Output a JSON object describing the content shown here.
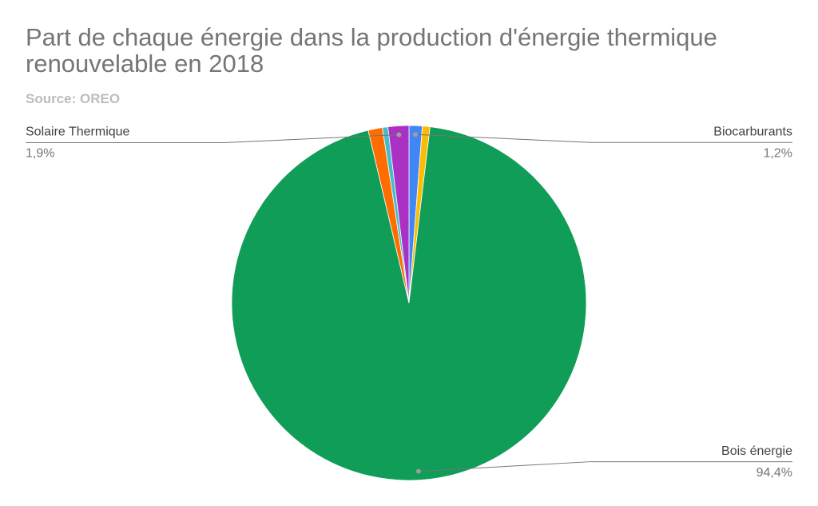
{
  "chart_data": {
    "type": "pie",
    "title": "Part de chaque énergie dans la production d'énergie thermique renouvelable en 2018",
    "subtitle": "Source: OREO",
    "categories": [
      "Biocarburants",
      null,
      "Bois énergie",
      null,
      null,
      "Solaire Thermique"
    ],
    "values": [
      1.2,
      0.7,
      94.4,
      1.3,
      0.5,
      1.9
    ],
    "value_labels": [
      "1,2%",
      null,
      "94,4%",
      null,
      null,
      "1,9%"
    ],
    "colors": [
      "#4285f4",
      "#fbbc04",
      "#0f9d58",
      "#ff6d01",
      "#46bdc6",
      "#ab30c4"
    ]
  }
}
